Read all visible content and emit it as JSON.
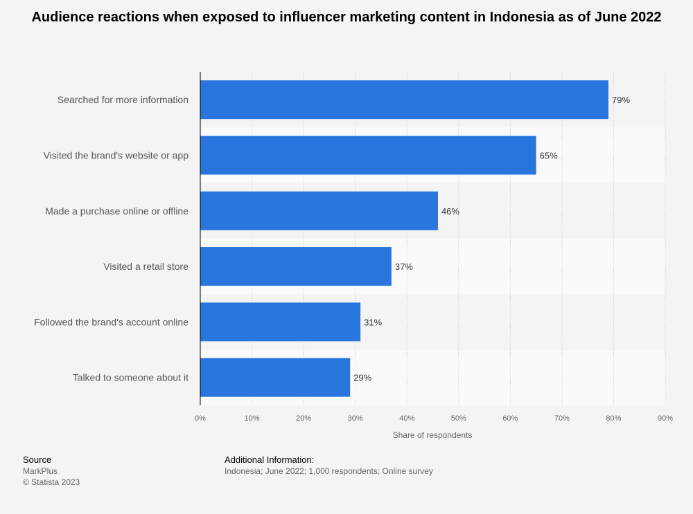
{
  "chart_data": {
    "type": "bar",
    "orientation": "horizontal",
    "title": "Audience reactions when exposed to influencer marketing content in Indonesia as of June 2022",
    "categories": [
      "Searched for more information",
      "Visited the brand's website or app",
      "Made a purchase online or offline",
      "Visited a retail store",
      "Followed the brand's account online",
      "Talked to someone about it"
    ],
    "values": [
      79,
      65,
      46,
      37,
      31,
      29
    ],
    "value_labels": [
      "79%",
      "65%",
      "46%",
      "37%",
      "31%",
      "29%"
    ],
    "xlabel": "Share of respondents",
    "ylabel": "",
    "xlim": [
      0,
      90
    ],
    "ticks": [
      0,
      10,
      20,
      30,
      40,
      50,
      60,
      70,
      80,
      90
    ],
    "tick_labels": [
      "0%",
      "10%",
      "20%",
      "30%",
      "40%",
      "50%",
      "60%",
      "70%",
      "80%",
      "90%"
    ],
    "bar_color": "#2876dd",
    "grid": true
  },
  "footer": {
    "source_heading": "Source",
    "source_name": "MarkPlus",
    "copyright": "© Statista 2023",
    "additional_heading": "Additional Information:",
    "additional_text": "Indonesia; June 2022; 1,000 respondents; Online survey"
  }
}
